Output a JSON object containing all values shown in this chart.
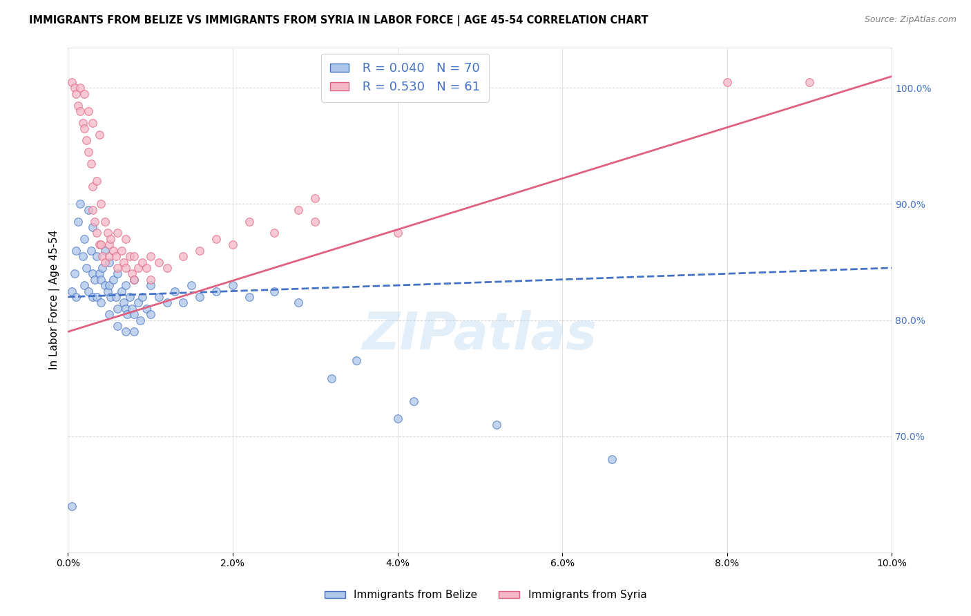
{
  "title": "IMMIGRANTS FROM BELIZE VS IMMIGRANTS FROM SYRIA IN LABOR FORCE | AGE 45-54 CORRELATION CHART",
  "source": "Source: ZipAtlas.com",
  "ylabel": "In Labor Force | Age 45-54",
  "legend_labels": [
    "Immigrants from Belize",
    "Immigrants from Syria"
  ],
  "belize_R": 0.04,
  "belize_N": 70,
  "syria_R": 0.53,
  "syria_N": 61,
  "belize_color": "#aec6e8",
  "syria_color": "#f5b8c8",
  "belize_line_color": "#4472c4",
  "syria_line_color": "#e06080",
  "xlim": [
    0.0,
    10.0
  ],
  "ylim": [
    60.0,
    103.0
  ],
  "y_ticks_right": [
    70.0,
    80.0,
    90.0,
    100.0
  ],
  "watermark": "ZIPatlas",
  "belize_line": [
    0.0,
    82.0,
    10.0,
    84.5
  ],
  "syria_line": [
    0.0,
    79.0,
    10.0,
    101.0
  ],
  "belize_points": [
    [
      0.05,
      82.5
    ],
    [
      0.08,
      84.0
    ],
    [
      0.1,
      86.0
    ],
    [
      0.1,
      82.0
    ],
    [
      0.12,
      88.5
    ],
    [
      0.15,
      90.0
    ],
    [
      0.18,
      85.5
    ],
    [
      0.2,
      87.0
    ],
    [
      0.2,
      83.0
    ],
    [
      0.22,
      84.5
    ],
    [
      0.25,
      89.5
    ],
    [
      0.25,
      82.5
    ],
    [
      0.28,
      86.0
    ],
    [
      0.3,
      88.0
    ],
    [
      0.3,
      84.0
    ],
    [
      0.3,
      82.0
    ],
    [
      0.32,
      83.5
    ],
    [
      0.35,
      85.5
    ],
    [
      0.35,
      82.0
    ],
    [
      0.38,
      84.0
    ],
    [
      0.4,
      83.5
    ],
    [
      0.4,
      81.5
    ],
    [
      0.42,
      84.5
    ],
    [
      0.45,
      86.0
    ],
    [
      0.45,
      83.0
    ],
    [
      0.48,
      82.5
    ],
    [
      0.5,
      85.0
    ],
    [
      0.5,
      83.0
    ],
    [
      0.5,
      80.5
    ],
    [
      0.52,
      82.0
    ],
    [
      0.55,
      83.5
    ],
    [
      0.58,
      82.0
    ],
    [
      0.6,
      84.0
    ],
    [
      0.6,
      81.0
    ],
    [
      0.6,
      79.5
    ],
    [
      0.65,
      82.5
    ],
    [
      0.68,
      81.5
    ],
    [
      0.7,
      83.0
    ],
    [
      0.7,
      81.0
    ],
    [
      0.7,
      79.0
    ],
    [
      0.72,
      80.5
    ],
    [
      0.75,
      82.0
    ],
    [
      0.78,
      81.0
    ],
    [
      0.8,
      83.5
    ],
    [
      0.8,
      80.5
    ],
    [
      0.8,
      79.0
    ],
    [
      0.85,
      81.5
    ],
    [
      0.88,
      80.0
    ],
    [
      0.9,
      82.0
    ],
    [
      0.95,
      81.0
    ],
    [
      1.0,
      83.0
    ],
    [
      1.0,
      80.5
    ],
    [
      1.1,
      82.0
    ],
    [
      1.2,
      81.5
    ],
    [
      1.3,
      82.5
    ],
    [
      1.4,
      81.5
    ],
    [
      1.5,
      83.0
    ],
    [
      1.6,
      82.0
    ],
    [
      1.8,
      82.5
    ],
    [
      2.0,
      83.0
    ],
    [
      2.2,
      82.0
    ],
    [
      2.5,
      82.5
    ],
    [
      2.8,
      81.5
    ],
    [
      3.2,
      75.0
    ],
    [
      3.5,
      76.5
    ],
    [
      4.0,
      71.5
    ],
    [
      4.2,
      73.0
    ],
    [
      5.2,
      71.0
    ],
    [
      6.6,
      68.0
    ],
    [
      0.05,
      64.0
    ]
  ],
  "syria_points": [
    [
      0.05,
      100.5
    ],
    [
      0.08,
      100.0
    ],
    [
      0.1,
      99.5
    ],
    [
      0.12,
      98.5
    ],
    [
      0.15,
      100.0
    ],
    [
      0.15,
      98.0
    ],
    [
      0.18,
      97.0
    ],
    [
      0.2,
      99.5
    ],
    [
      0.2,
      96.5
    ],
    [
      0.22,
      95.5
    ],
    [
      0.25,
      98.0
    ],
    [
      0.25,
      94.5
    ],
    [
      0.28,
      93.5
    ],
    [
      0.3,
      97.0
    ],
    [
      0.3,
      91.5
    ],
    [
      0.3,
      89.5
    ],
    [
      0.32,
      88.5
    ],
    [
      0.35,
      92.0
    ],
    [
      0.35,
      87.5
    ],
    [
      0.38,
      86.5
    ],
    [
      0.4,
      90.0
    ],
    [
      0.4,
      86.5
    ],
    [
      0.42,
      85.5
    ],
    [
      0.45,
      88.5
    ],
    [
      0.45,
      85.0
    ],
    [
      0.48,
      87.5
    ],
    [
      0.5,
      86.5
    ],
    [
      0.5,
      85.5
    ],
    [
      0.52,
      87.0
    ],
    [
      0.55,
      86.0
    ],
    [
      0.58,
      85.5
    ],
    [
      0.6,
      87.5
    ],
    [
      0.6,
      84.5
    ],
    [
      0.65,
      86.0
    ],
    [
      0.68,
      85.0
    ],
    [
      0.7,
      87.0
    ],
    [
      0.7,
      84.5
    ],
    [
      0.75,
      85.5
    ],
    [
      0.78,
      84.0
    ],
    [
      0.8,
      85.5
    ],
    [
      0.8,
      83.5
    ],
    [
      0.85,
      84.5
    ],
    [
      0.9,
      85.0
    ],
    [
      0.95,
      84.5
    ],
    [
      1.0,
      85.5
    ],
    [
      1.0,
      83.5
    ],
    [
      1.1,
      85.0
    ],
    [
      1.2,
      84.5
    ],
    [
      1.4,
      85.5
    ],
    [
      1.6,
      86.0
    ],
    [
      1.8,
      87.0
    ],
    [
      2.0,
      86.5
    ],
    [
      2.2,
      88.5
    ],
    [
      2.5,
      87.5
    ],
    [
      2.8,
      89.5
    ],
    [
      3.0,
      88.5
    ],
    [
      3.0,
      90.5
    ],
    [
      0.38,
      96.0
    ],
    [
      8.0,
      100.5
    ],
    [
      9.0,
      100.5
    ],
    [
      4.0,
      87.5
    ]
  ]
}
